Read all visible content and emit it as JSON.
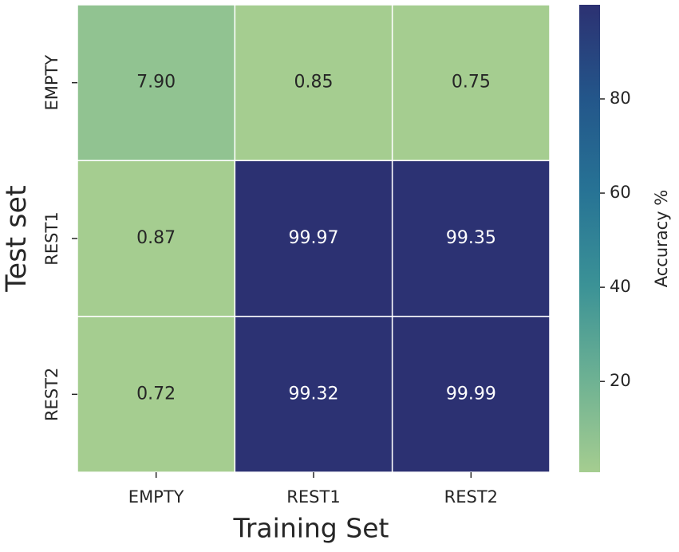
{
  "chart_data": {
    "type": "heatmap",
    "x_label": "Training Set",
    "y_label": "Test set",
    "x_categories": [
      "EMPTY",
      "REST1",
      "REST2"
    ],
    "y_categories": [
      "EMPTY",
      "REST1",
      "REST2"
    ],
    "values": [
      [
        7.9,
        0.85,
        0.75
      ],
      [
        0.87,
        99.97,
        99.35
      ],
      [
        0.72,
        99.32,
        99.99
      ]
    ],
    "value_labels": [
      [
        "7.90",
        "0.85",
        "0.75"
      ],
      [
        "0.87",
        "99.97",
        "99.35"
      ],
      [
        "0.72",
        "99.32",
        "99.99"
      ]
    ],
    "colorbar_label": "Accuracy %",
    "clim": [
      0.72,
      99.99
    ],
    "cticks": [
      20,
      40,
      60,
      80
    ],
    "colormap": [
      "#a5cd90",
      "#6db193",
      "#3b9296",
      "#277395",
      "#23568a",
      "#2c3172"
    ]
  }
}
